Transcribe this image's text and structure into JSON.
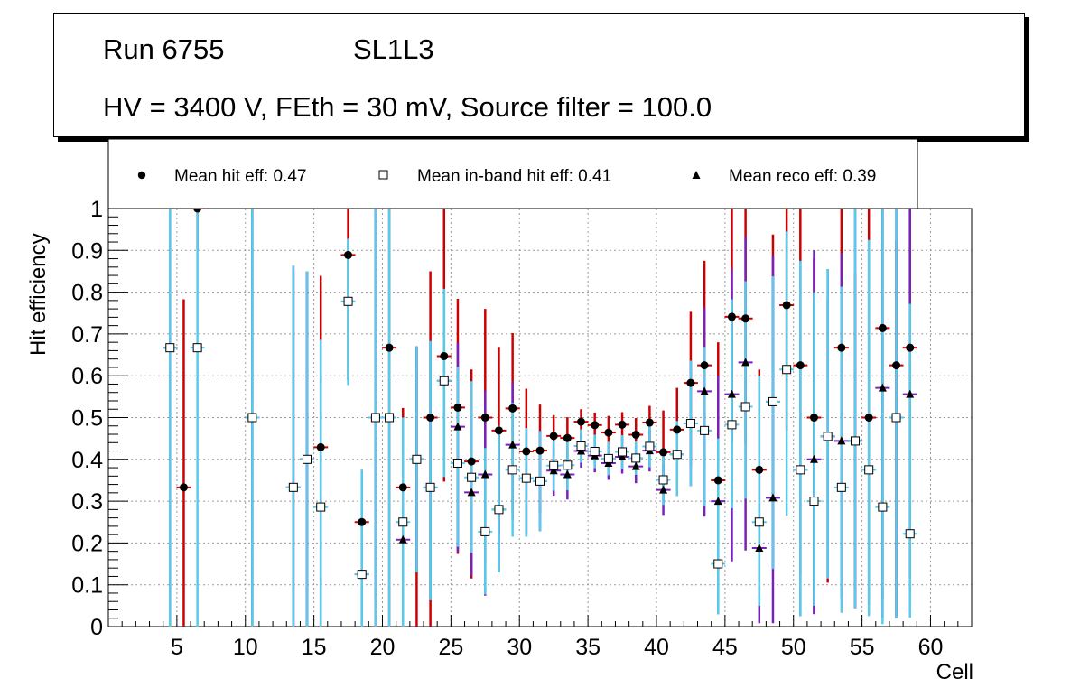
{
  "header": {
    "run_label": "Run 6755",
    "layer_label": "SL1L3",
    "conditions": "HV = 3400 V, FEth = 30 mV, Source filter = 100.0"
  },
  "chart_data": {
    "type": "scatter",
    "title": "",
    "xlabel": "Cell",
    "ylabel": "Hit efficiency",
    "xlim": [
      0,
      63
    ],
    "ylim": [
      0,
      1
    ],
    "x_ticks": [
      5,
      10,
      15,
      20,
      25,
      30,
      35,
      40,
      45,
      50,
      55,
      60
    ],
    "y_ticks": [
      0,
      0.1,
      0.2,
      0.3,
      0.4,
      0.5,
      0.6,
      0.7,
      0.8,
      0.9,
      1
    ],
    "x_tick_labels": [
      "5",
      "10",
      "15",
      "20",
      "25",
      "30",
      "35",
      "40",
      "45",
      "50",
      "55",
      "60"
    ],
    "y_tick_labels": [
      "0",
      "0.1",
      "0.2",
      "0.3",
      "0.4",
      "0.5",
      "0.6",
      "0.7",
      "0.8",
      "0.9",
      "1"
    ],
    "grid": true,
    "legend": {
      "placement": "top",
      "entries": [
        {
          "marker": "filled-circle",
          "label": "Mean hit  eff: 0.47"
        },
        {
          "marker": "open-square",
          "label": "Mean in-band hit eff: 0.41"
        },
        {
          "marker": "filled-triangle",
          "label": "Mean reco eff: 0.39"
        }
      ]
    },
    "colors": {
      "hit_error": "#cc0000",
      "inband_error": "#55ccee",
      "reco_error": "#7722bb",
      "grid": "#999999"
    },
    "series": [
      {
        "name": "Mean hit eff",
        "marker": "filled-circle",
        "x": [
          4.5,
          5.5,
          6.5,
          10.5,
          13.5,
          14.5,
          15.5,
          17.5,
          18.5,
          19.5,
          20.5,
          21.5,
          22.5,
          23.5,
          24.5,
          25.5,
          26.5,
          27.5,
          28.5,
          29.5,
          30.5,
          31.5,
          32.5,
          33.5,
          34.5,
          35.5,
          36.5,
          37.5,
          38.5,
          39.5,
          40.5,
          41.5,
          42.5,
          43.5,
          44.5,
          45.5,
          46.5,
          47.5,
          48.5,
          49.5,
          50.5,
          51.5,
          52.5,
          53.5,
          54.5,
          55.5,
          56.5,
          57.5,
          58.5
        ],
        "y": [
          0.667,
          0.333,
          1.0,
          0.5,
          0.333,
          0.4,
          0.429,
          0.889,
          0.25,
          0.5,
          0.667,
          0.333,
          0.4,
          0.5,
          0.647,
          0.524,
          0.395,
          0.5,
          0.469,
          0.522,
          0.419,
          0.421,
          0.456,
          0.451,
          0.49,
          0.482,
          0.464,
          0.483,
          0.459,
          0.488,
          0.417,
          0.471,
          0.583,
          0.625,
          0.35,
          0.741,
          0.737,
          0.375,
          0.538,
          0.769,
          0.625,
          0.5,
          0.455,
          0.667,
          0.444,
          0.5,
          0.714,
          0.625,
          0.667
        ],
        "err_low": [
          0.667,
          0.333,
          0.1,
          0.5,
          0.333,
          0.4,
          0.429,
          0.3,
          0.25,
          0.5,
          0.667,
          0.333,
          0.4,
          0.5,
          0.3,
          0.35,
          0.28,
          0.35,
          0.25,
          0.25,
          0.2,
          0.15,
          0.08,
          0.07,
          0.04,
          0.04,
          0.05,
          0.04,
          0.05,
          0.07,
          0.1,
          0.15,
          0.2,
          0.25,
          0.32,
          0.3,
          0.3,
          0.2,
          0.4,
          0.3,
          0.5,
          0.47,
          0.35,
          0.6,
          0.4,
          0.45,
          0.65,
          0.6,
          0.55
        ],
        "err_high": [
          0.333,
          0.45,
          0.0,
          0.5,
          0.52,
          0.45,
          0.41,
          0.11,
          0.05,
          0.5,
          0.333,
          0.19,
          0.27,
          0.35,
          0.353,
          0.26,
          0.22,
          0.26,
          0.2,
          0.18,
          0.15,
          0.11,
          0.05,
          0.05,
          0.03,
          0.03,
          0.04,
          0.03,
          0.04,
          0.04,
          0.1,
          0.1,
          0.17,
          0.25,
          0.33,
          0.259,
          0.263,
          0.24,
          0.4,
          0.231,
          0.375,
          0.38,
          0.33,
          0.333,
          0.4,
          0.5,
          0.286,
          0.3,
          0.333
        ]
      },
      {
        "name": "Mean in-band hit eff",
        "marker": "open-square",
        "x": [
          4.5,
          6.5,
          10.5,
          13.5,
          14.5,
          15.5,
          17.5,
          18.5,
          19.5,
          20.5,
          21.5,
          22.5,
          23.5,
          24.5,
          25.5,
          26.5,
          27.5,
          28.5,
          29.5,
          30.5,
          31.5,
          32.5,
          33.5,
          34.5,
          35.5,
          36.5,
          37.5,
          38.5,
          39.5,
          40.5,
          41.5,
          42.5,
          43.5,
          44.5,
          45.5,
          46.5,
          47.5,
          48.5,
          49.5,
          50.5,
          51.5,
          52.5,
          53.5,
          54.5,
          55.5,
          56.5,
          57.5,
          58.5
        ],
        "y": [
          0.667,
          0.667,
          0.5,
          0.333,
          0.4,
          0.286,
          0.778,
          0.125,
          0.5,
          0.5,
          0.25,
          0.4,
          0.333,
          0.588,
          0.391,
          0.357,
          0.227,
          0.28,
          0.375,
          0.355,
          0.348,
          0.385,
          0.386,
          0.432,
          0.419,
          0.402,
          0.418,
          0.403,
          0.431,
          0.351,
          0.412,
          0.486,
          0.469,
          0.15,
          0.483,
          0.526,
          0.25,
          0.538,
          0.615,
          0.375,
          0.3,
          0.455,
          0.333,
          0.444,
          0.375,
          0.286,
          0.5,
          0.222
        ],
        "err_low": [
          0.667,
          0.667,
          0.5,
          0.333,
          0.4,
          0.286,
          0.2,
          0.125,
          0.5,
          0.5,
          0.25,
          0.27,
          0.27,
          0.23,
          0.2,
          0.18,
          0.15,
          0.15,
          0.16,
          0.14,
          0.12,
          0.06,
          0.06,
          0.04,
          0.04,
          0.04,
          0.04,
          0.04,
          0.05,
          0.06,
          0.1,
          0.15,
          0.18,
          0.12,
          0.2,
          0.22,
          0.2,
          0.4,
          0.35,
          0.35,
          0.25,
          0.34,
          0.3,
          0.4,
          0.35,
          0.28,
          0.48,
          0.2
        ],
        "err_high": [
          0.333,
          0.333,
          0.5,
          0.53,
          0.45,
          0.4,
          0.15,
          0.25,
          0.5,
          0.5,
          0.25,
          0.27,
          0.35,
          0.22,
          0.23,
          0.23,
          0.2,
          0.2,
          0.16,
          0.12,
          0.12,
          0.06,
          0.06,
          0.04,
          0.04,
          0.04,
          0.04,
          0.04,
          0.05,
          0.06,
          0.08,
          0.15,
          0.2,
          0.3,
          0.3,
          0.3,
          0.35,
          0.3,
          0.33,
          0.5,
          0.5,
          0.4,
          0.48,
          0.556,
          0.55,
          0.714,
          0.5,
          0.55
        ]
      },
      {
        "name": "Mean reco eff",
        "marker": "filled-triangle",
        "x": [
          4.5,
          10.5,
          13.5,
          14.5,
          18.5,
          19.5,
          21.5,
          22.5,
          23.5,
          24.5,
          25.5,
          26.5,
          27.5,
          28.5,
          29.5,
          30.5,
          31.5,
          32.5,
          33.5,
          34.5,
          35.5,
          36.5,
          37.5,
          38.5,
          39.5,
          40.5,
          41.5,
          42.5,
          43.5,
          44.5,
          45.5,
          46.5,
          47.5,
          48.5,
          50.5,
          51.5,
          52.5,
          53.5,
          54.5,
          56.5,
          57.5,
          58.5
        ],
        "y": [
          0.667,
          0.5,
          0.333,
          0.4,
          0.125,
          0.5,
          0.208,
          0.4,
          0.333,
          0.588,
          0.478,
          0.321,
          0.364,
          0.28,
          0.435,
          0.355,
          0.348,
          0.373,
          0.364,
          0.42,
          0.409,
          0.391,
          0.406,
          0.383,
          0.421,
          0.327,
          0.412,
          0.486,
          0.563,
          0.3,
          0.556,
          0.632,
          0.188,
          0.308,
          0.375,
          0.4,
          0.455,
          0.444,
          0.444,
          0.571,
          0.5,
          0.556
        ],
        "err_low": [
          0.667,
          0.5,
          0.333,
          0.4,
          0.125,
          0.44,
          0.15,
          0.27,
          0.27,
          0.23,
          0.3,
          0.2,
          0.29,
          0.15,
          0.18,
          0.14,
          0.12,
          0.06,
          0.06,
          0.04,
          0.04,
          0.04,
          0.04,
          0.04,
          0.05,
          0.06,
          0.1,
          0.15,
          0.3,
          0.27,
          0.4,
          0.45,
          0.18,
          0.3,
          0.35,
          0.37,
          0.34,
          0.37,
          0.4,
          0.55,
          0.48,
          0.44
        ],
        "err_high": [
          0.333,
          0.5,
          0.53,
          0.45,
          0.25,
          0.5,
          0.28,
          0.27,
          0.35,
          0.22,
          0.2,
          0.2,
          0.2,
          0.2,
          0.15,
          0.12,
          0.12,
          0.06,
          0.06,
          0.04,
          0.04,
          0.04,
          0.04,
          0.04,
          0.05,
          0.06,
          0.08,
          0.15,
          0.2,
          0.3,
          0.3,
          0.3,
          0.2,
          0.58,
          0.5,
          0.5,
          0.4,
          0.45,
          0.556,
          0.429,
          0.5,
          0.444
        ]
      }
    ]
  }
}
